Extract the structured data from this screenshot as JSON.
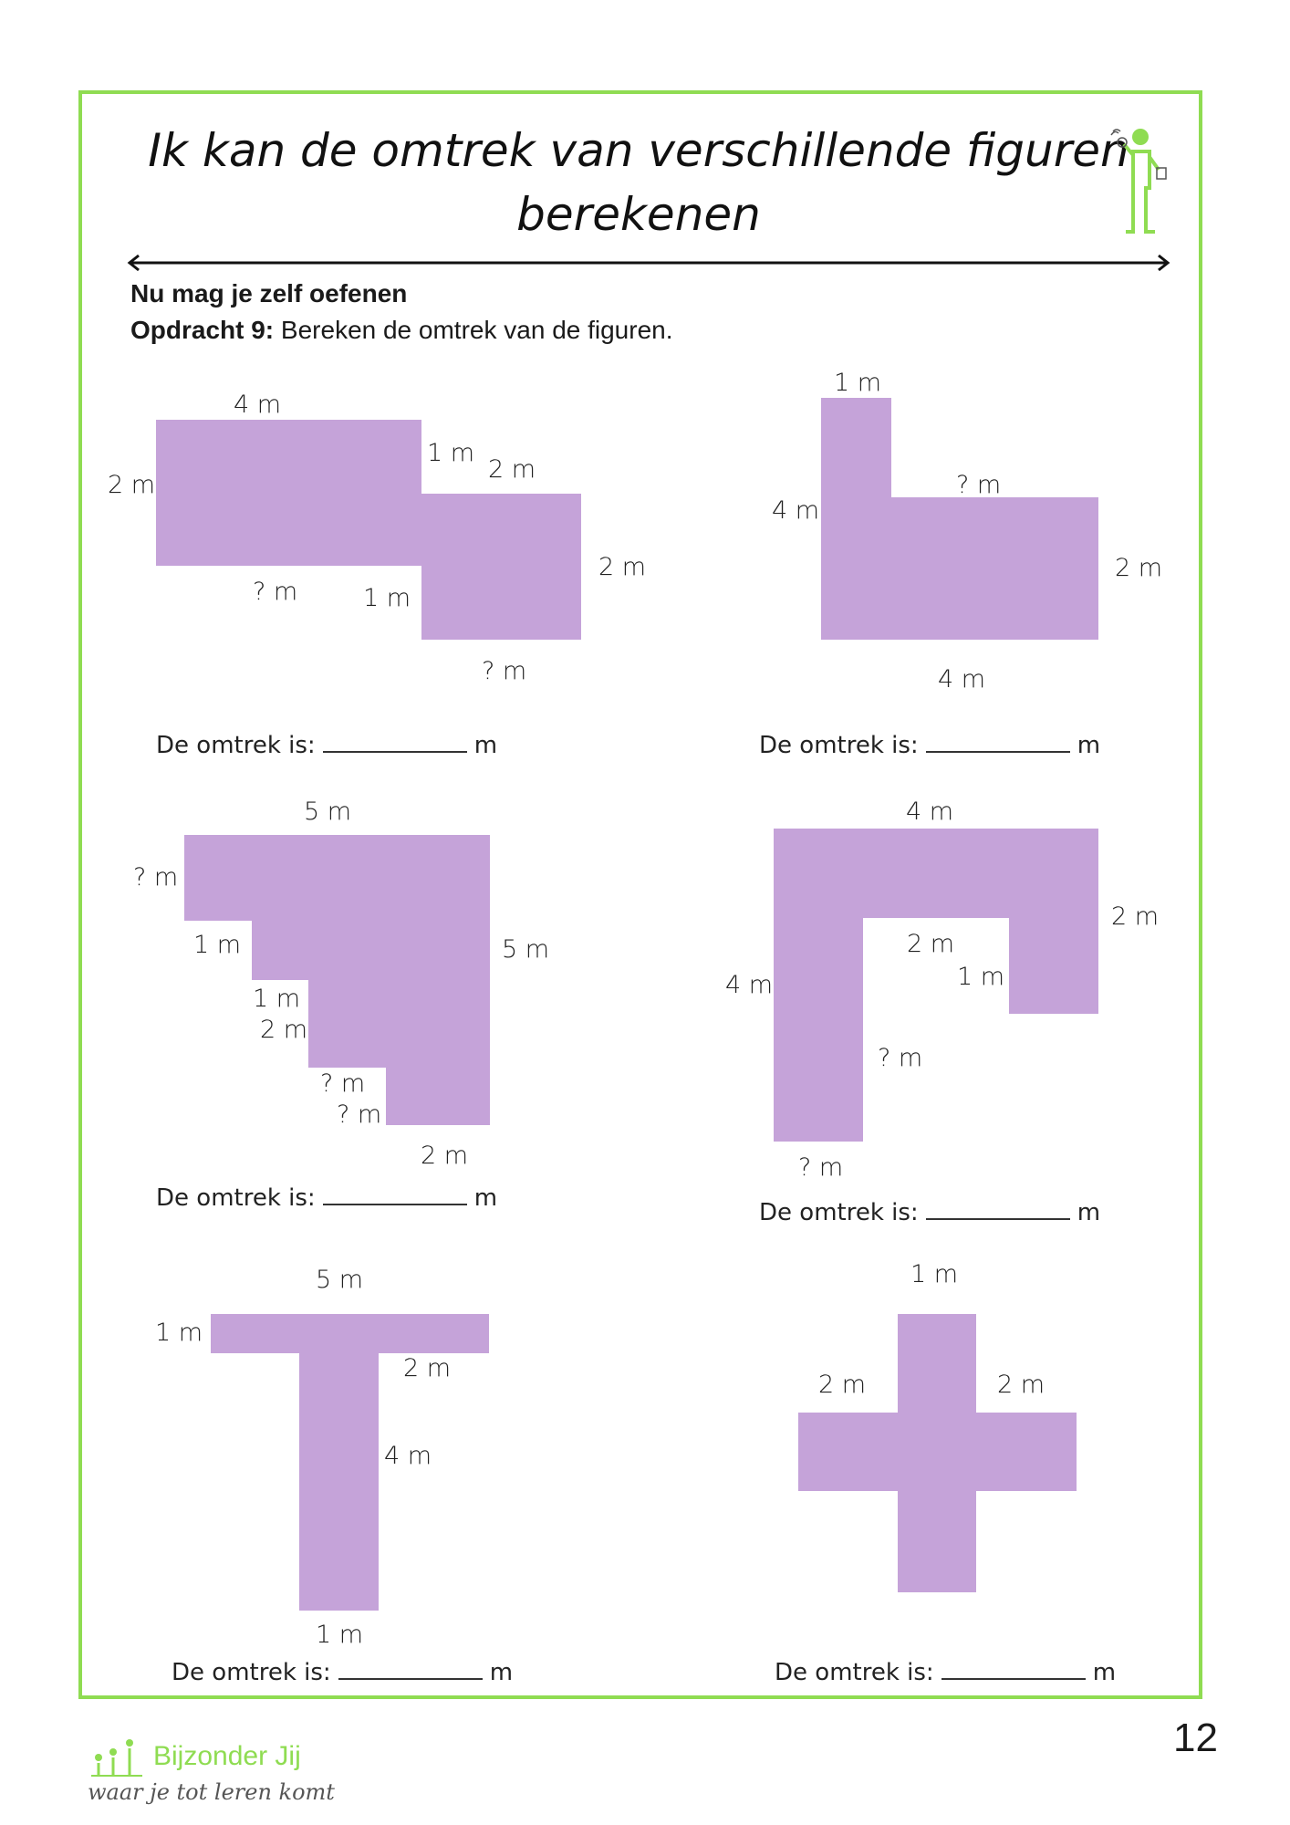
{
  "title": {
    "line1": "Ik kan de omtrek van verschillende figuren",
    "line2": "berekenen"
  },
  "heading": "Nu mag je zelf oefenen",
  "assignment": {
    "label": "Opdracht 9:",
    "text": " Bereken de omtrek van de figuren."
  },
  "answer": {
    "prefix": "De omtrek is:",
    "unit": "m"
  },
  "figures": [
    {
      "labels": [
        "4 m",
        "2 m",
        "1 m",
        "2 m",
        "2 m",
        "? m",
        "1 m",
        "? m"
      ]
    },
    {
      "labels": [
        "1 m",
        "4 m",
        "? m",
        "2 m",
        "4 m"
      ]
    },
    {
      "labels": [
        "5 m",
        "? m",
        "5 m",
        "1 m",
        "1 m",
        "2 m",
        "? m",
        "? m",
        "2 m"
      ]
    },
    {
      "labels": [
        "4 m",
        "2 m",
        "2 m",
        "1 m",
        "4 m",
        "? m",
        "? m"
      ]
    },
    {
      "labels": [
        "5 m",
        "1 m",
        "2 m",
        "4 m",
        "1 m"
      ]
    },
    {
      "labels": [
        "1 m",
        "2 m",
        "2 m"
      ]
    }
  ],
  "page_number": "12",
  "footer": {
    "brand": "Bijzonder Jij",
    "tagline": "waar je tot leren komt"
  },
  "colors": {
    "border": "#8fdc52",
    "shape": "#c5a3d9"
  }
}
